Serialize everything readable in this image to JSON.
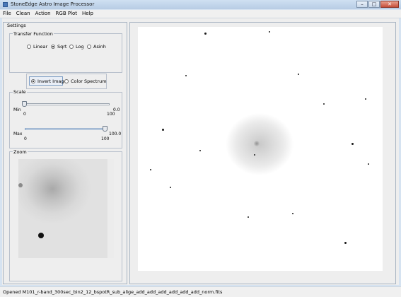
{
  "window": {
    "title": "StoneEdge Astro Image Processor"
  },
  "menu": [
    "File",
    "Clean",
    "Action",
    "RGB Plot",
    "Help"
  ],
  "settings": {
    "title": "Settings",
    "transfer_function": {
      "title": "Transfer Function",
      "options": [
        "Linear",
        "Sqrt",
        "Log",
        "Asinh"
      ],
      "selected": "Sqrt"
    },
    "display_mode": {
      "options": [
        "Invert Image",
        "Color Spectrum"
      ],
      "selected": "Invert Image"
    },
    "scale": {
      "title": "Scale",
      "min": {
        "label": "Min",
        "value": "0.0",
        "tick_start": "0",
        "tick_end": "100",
        "position": 0
      },
      "max": {
        "label": "Max",
        "value": "100.0",
        "tick_start": "0",
        "tick_end": "100",
        "position": 100
      }
    },
    "zoom": {
      "title": "Zoom"
    }
  },
  "status": {
    "text": "Opened M101_r-band_300sec_bin2_12_bspotR_sub_alige_add_add_add_add_add_add_norm.fits"
  }
}
